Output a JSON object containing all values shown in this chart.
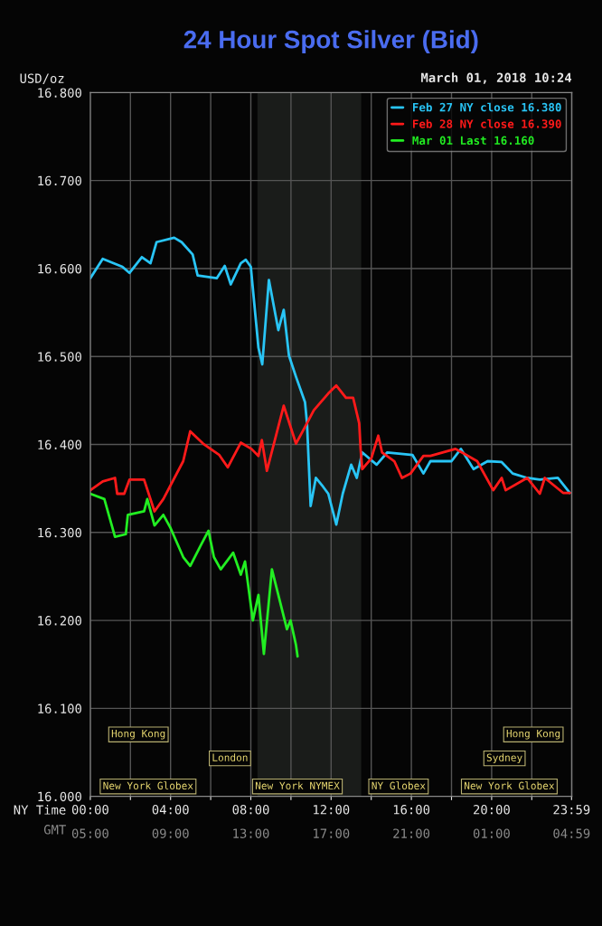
{
  "chart_data": {
    "type": "line",
    "title": "24 Hour Spot Silver (Bid)",
    "subtitle": "March 01, 2018 10:24",
    "xlabel": "NY Time",
    "x2label": "GMT",
    "ylabel": "USD/oz",
    "xlim": [
      0,
      24
    ],
    "ylim": [
      16.0,
      16.8
    ],
    "xticks": [
      {
        "value": 0,
        "label": "00:00"
      },
      {
        "value": 2,
        "label": null
      },
      {
        "value": 4,
        "label": "04:00"
      },
      {
        "value": 6,
        "label": null
      },
      {
        "value": 8,
        "label": "08:00"
      },
      {
        "value": 10,
        "label": null
      },
      {
        "value": 12,
        "label": "12:00"
      },
      {
        "value": 14,
        "label": null
      },
      {
        "value": 16,
        "label": "16:00"
      },
      {
        "value": 18,
        "label": null
      },
      {
        "value": 20,
        "label": "20:00"
      },
      {
        "value": 22,
        "label": null
      },
      {
        "value": 23.983,
        "label": "23:59"
      }
    ],
    "x2lim": [
      "2018-03-01T05:00",
      "2018-03-02T05:00"
    ],
    "x2ticks": [
      {
        "value": "2018-03-01T05:00",
        "label": "05:00"
      },
      {
        "value": "2018-03-01T09:00",
        "label": "09:00"
      },
      {
        "value": "2018-03-01T13:00",
        "label": "13:00"
      },
      {
        "value": "2018-03-01T17:00",
        "label": "17:00"
      },
      {
        "value": "2018-03-01T21:00",
        "label": "21:00"
      },
      {
        "value": "2018-03-02T01:00",
        "label": "01:00"
      },
      {
        "value": "2018-03-02T04:59",
        "label": "04:59"
      }
    ],
    "yticks": [
      {
        "value": 16.0,
        "label": "16.000"
      },
      {
        "value": 16.1,
        "label": "16.100"
      },
      {
        "value": 16.2,
        "label": "16.200"
      },
      {
        "value": 16.3,
        "label": "16.300"
      },
      {
        "value": 16.4,
        "label": "16.400"
      },
      {
        "value": 16.5,
        "label": "16.500"
      },
      {
        "value": 16.6,
        "label": "16.600"
      },
      {
        "value": 16.7,
        "label": "16.700"
      },
      {
        "value": 16.8,
        "label": "16.800"
      }
    ],
    "grid": true,
    "legend": "top right",
    "marker": "none",
    "line_style": "solid",
    "bands": [
      {
        "axis": "x",
        "from": 8.33,
        "to": 13.5,
        "color": "#1a1c1a"
      }
    ],
    "annotations": [
      "Hong Kong",
      "New York Globex",
      "London",
      "New York NYMEX",
      "NY Globex",
      "Sydney",
      "New York Globex",
      "Hong Kong"
    ],
    "series": [
      {
        "name": "Feb 27 NY close 16.380",
        "color": "#29c5f6",
        "x": [
          0,
          0.62,
          1.6,
          1.95,
          2.57,
          3.0,
          3.3,
          4.18,
          4.55,
          5.1,
          5.35,
          6.3,
          6.7,
          7.0,
          7.5,
          7.75,
          8.0,
          8.38,
          8.57,
          8.9,
          9.37,
          9.64,
          9.9,
          10.25,
          10.7,
          10.8,
          10.98,
          11.24,
          11.6,
          11.86,
          12.26,
          12.58,
          13.0,
          13.28,
          13.55,
          14.27,
          14.8,
          16.06,
          16.6,
          16.95,
          18.0,
          18.47,
          19.1,
          19.8,
          20.5,
          21.05,
          21.77,
          22.4,
          23.3,
          23.9
        ],
        "values": [
          16.589,
          16.611,
          16.602,
          16.595,
          16.613,
          16.606,
          16.63,
          16.635,
          16.63,
          16.616,
          16.592,
          16.589,
          16.603,
          16.582,
          16.606,
          16.61,
          16.602,
          16.51,
          16.491,
          16.587,
          16.53,
          16.553,
          16.501,
          16.477,
          16.448,
          16.424,
          16.33,
          16.362,
          16.352,
          16.344,
          16.309,
          16.344,
          16.377,
          16.362,
          16.391,
          16.377,
          16.391,
          16.388,
          16.367,
          16.381,
          16.381,
          16.395,
          16.372,
          16.381,
          16.38,
          16.367,
          16.362,
          16.36,
          16.362,
          16.345
        ]
      },
      {
        "name": "Feb 28 NY close 16.390",
        "color": "#ff1a1a",
        "x": [
          0,
          0.62,
          1.23,
          1.34,
          1.69,
          1.95,
          2.68,
          3.2,
          3.64,
          4.63,
          4.98,
          5.62,
          6.43,
          6.85,
          7.5,
          8.03,
          8.38,
          8.55,
          8.8,
          9.64,
          10.25,
          10.7,
          11.14,
          11.86,
          12.26,
          12.74,
          13.1,
          13.4,
          13.47,
          13.55,
          14.0,
          14.35,
          14.54,
          15.15,
          15.53,
          15.96,
          16.6,
          16.95,
          18.2,
          19.28,
          20.08,
          20.5,
          20.7,
          21.77,
          22.4,
          22.65,
          23.56,
          23.9
        ],
        "values": [
          16.348,
          16.358,
          16.362,
          16.344,
          16.344,
          16.36,
          16.36,
          16.324,
          16.338,
          16.381,
          16.415,
          16.401,
          16.388,
          16.374,
          16.402,
          16.395,
          16.387,
          16.405,
          16.37,
          16.444,
          16.401,
          16.42,
          16.439,
          16.458,
          16.467,
          16.453,
          16.453,
          16.424,
          16.395,
          16.372,
          16.384,
          16.41,
          16.391,
          16.381,
          16.362,
          16.367,
          16.387,
          16.387,
          16.395,
          16.381,
          16.348,
          16.362,
          16.348,
          16.362,
          16.344,
          16.362,
          16.345,
          16.345
        ]
      },
      {
        "name": "Mar 01 Last 16.160",
        "color": "#22ee22",
        "x": [
          0,
          0.7,
          1.23,
          1.77,
          1.87,
          2.68,
          2.84,
          3.2,
          3.64,
          4.0,
          4.63,
          4.98,
          5.52,
          5.89,
          6.16,
          6.5,
          7.12,
          7.5,
          7.71,
          8.1,
          8.38,
          8.65,
          9.05,
          9.8,
          9.98,
          10.25,
          10.33
        ],
        "values": [
          16.344,
          16.338,
          16.295,
          16.298,
          16.32,
          16.324,
          16.338,
          16.308,
          16.32,
          16.305,
          16.272,
          16.262,
          16.286,
          16.302,
          16.272,
          16.258,
          16.277,
          16.252,
          16.267,
          16.2,
          16.229,
          16.162,
          16.258,
          16.19,
          16.2,
          16.172,
          16.159
        ]
      }
    ]
  }
}
